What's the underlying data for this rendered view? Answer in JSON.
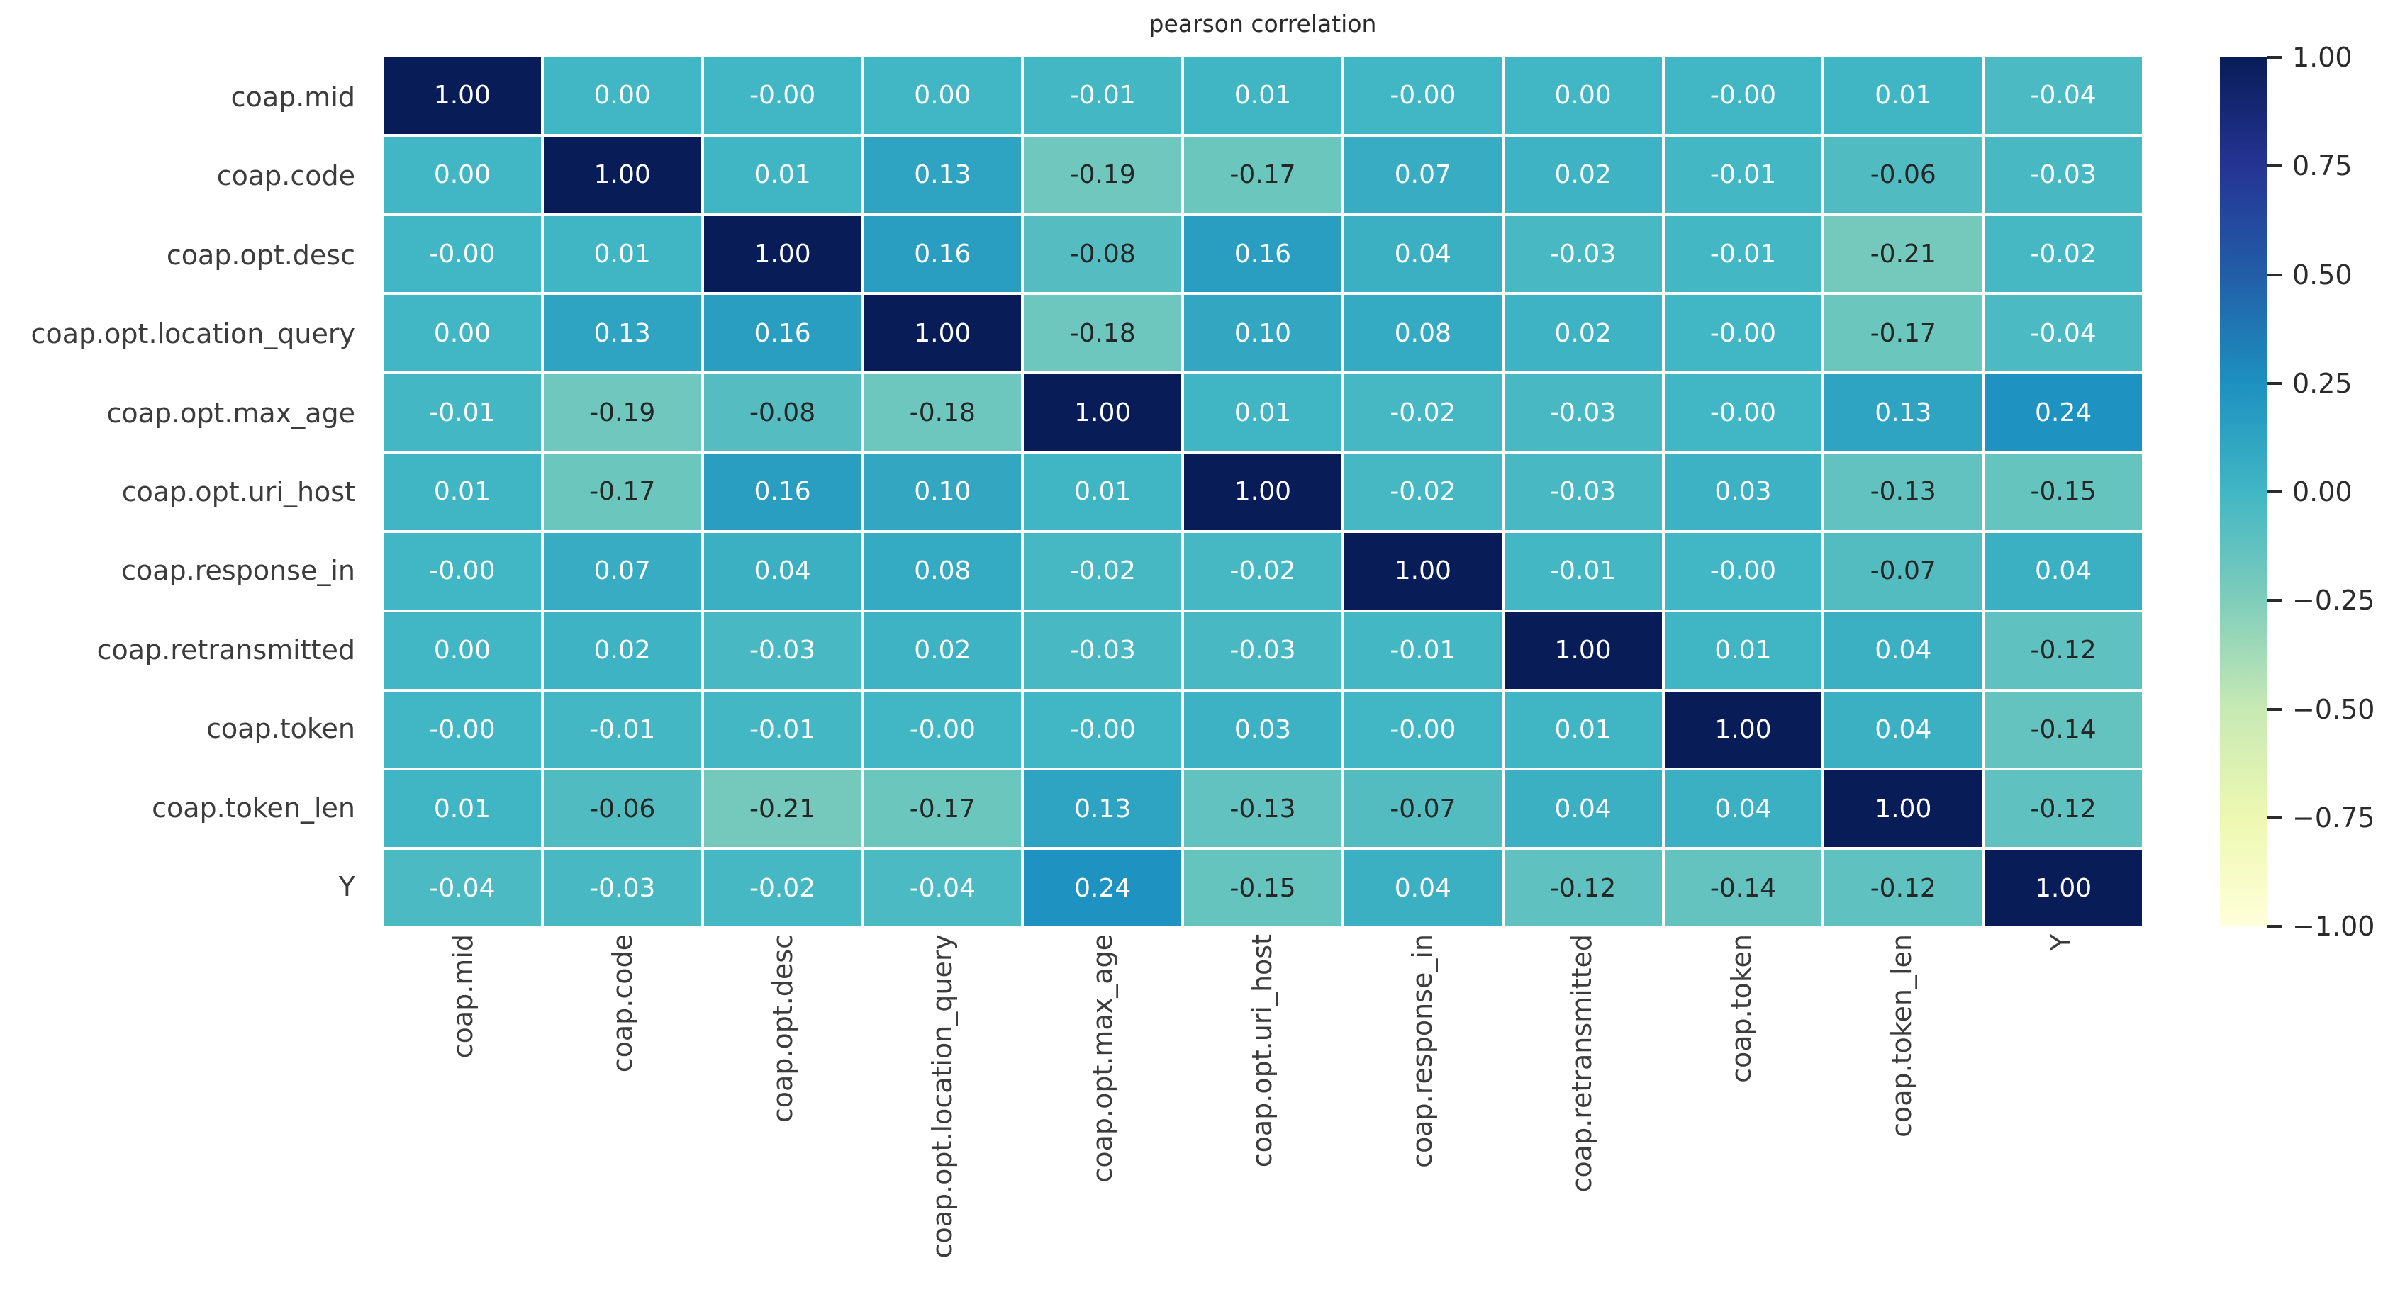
{
  "page": {
    "background": "#ffffff"
  },
  "chart_data": {
    "type": "heatmap",
    "title": "pearson correlation",
    "labels": [
      "coap.mid",
      "coap.code",
      "coap.opt.desc",
      "coap.opt.location_query",
      "coap.opt.max_age",
      "coap.opt.uri_host",
      "coap.response_in",
      "coap.retransmitted",
      "coap.token",
      "coap.token_len",
      "Y"
    ],
    "matrix": [
      [
        "1.00",
        "0.00",
        "-0.00",
        "0.00",
        "-0.01",
        "0.01",
        "-0.00",
        "0.00",
        "-0.00",
        "0.01",
        "-0.04"
      ],
      [
        "0.00",
        "1.00",
        "0.01",
        "0.13",
        "-0.19",
        "-0.17",
        "0.07",
        "0.02",
        "-0.01",
        "-0.06",
        "-0.03"
      ],
      [
        "-0.00",
        "0.01",
        "1.00",
        "0.16",
        "-0.08",
        "0.16",
        "0.04",
        "-0.03",
        "-0.01",
        "-0.21",
        "-0.02"
      ],
      [
        "0.00",
        "0.13",
        "0.16",
        "1.00",
        "-0.18",
        "0.10",
        "0.08",
        "0.02",
        "-0.00",
        "-0.17",
        "-0.04"
      ],
      [
        "-0.01",
        "-0.19",
        "-0.08",
        "-0.18",
        "1.00",
        "0.01",
        "-0.02",
        "-0.03",
        "-0.00",
        "0.13",
        "0.24"
      ],
      [
        "0.01",
        "-0.17",
        "0.16",
        "0.10",
        "0.01",
        "1.00",
        "-0.02",
        "-0.03",
        "0.03",
        "-0.13",
        "-0.15"
      ],
      [
        "-0.00",
        "0.07",
        "0.04",
        "0.08",
        "-0.02",
        "-0.02",
        "1.00",
        "-0.01",
        "-0.00",
        "-0.07",
        "0.04"
      ],
      [
        "0.00",
        "0.02",
        "-0.03",
        "0.02",
        "-0.03",
        "-0.03",
        "-0.01",
        "1.00",
        "0.01",
        "0.04",
        "-0.12"
      ],
      [
        "-0.00",
        "-0.01",
        "-0.01",
        "-0.00",
        "-0.00",
        "0.03",
        "-0.00",
        "0.01",
        "1.00",
        "0.04",
        "-0.14"
      ],
      [
        "0.01",
        "-0.06",
        "-0.21",
        "-0.17",
        "0.13",
        "-0.13",
        "-0.07",
        "0.04",
        "0.04",
        "1.00",
        "-0.12"
      ],
      [
        "-0.04",
        "-0.03",
        "-0.02",
        "-0.04",
        "0.24",
        "-0.15",
        "0.04",
        "-0.12",
        "-0.14",
        "-0.12",
        "1.00"
      ]
    ],
    "vmin": -1,
    "vmax": 1,
    "colormap": "YlGnBu",
    "colormap_stops": [
      "#ffffd9",
      "#edf8b1",
      "#c7e9b4",
      "#7fcdbb",
      "#41b6c4",
      "#1d91c0",
      "#225ea8",
      "#253494",
      "#081d58"
    ],
    "annotation_colors": {
      "light": "#ffffff",
      "dark": "#262626"
    },
    "colorbar_ticks": [
      "1.00",
      "0.75",
      "0.50",
      "0.25",
      "0.00",
      "−0.25",
      "−0.50",
      "−0.75",
      "−1.00"
    ],
    "colorbar_position": "right",
    "grid": false,
    "cell_gap_color": "#ffffff"
  }
}
